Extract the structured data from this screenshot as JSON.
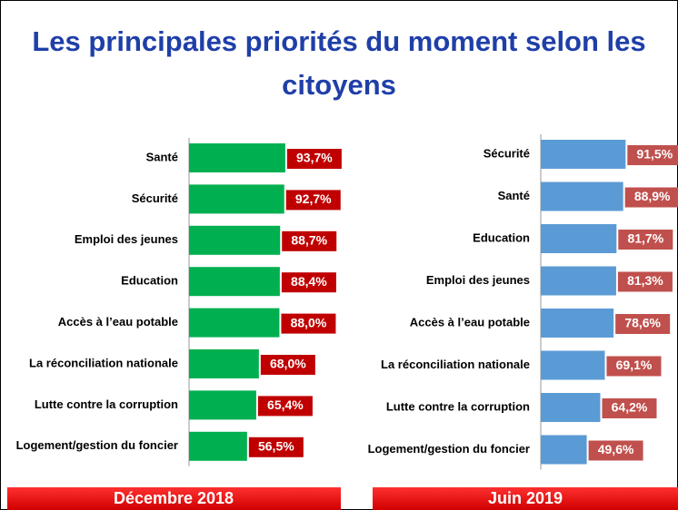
{
  "title": "Les principales priorités du moment selon les citoyens",
  "chart_data": [
    {
      "type": "barh",
      "title": "Décembre 2018",
      "color": "#00b050",
      "label_color": "#c00000",
      "categories": [
        "Santé",
        "Sécurité",
        "Emploi des jeunes",
        "Education",
        "Accès à l’eau potable",
        "La réconciliation nationale",
        "Lutte contre la corruption",
        "Logement/gestion du foncier"
      ],
      "values": [
        93.7,
        92.7,
        88.7,
        88.4,
        88.0,
        68.0,
        65.4,
        56.5
      ],
      "value_labels": [
        "93,7%",
        "92,7%",
        "88,7%",
        "88,4%",
        "88,0%",
        "68,0%",
        "65,4%",
        "56,5%"
      ],
      "xlim": [
        0,
        100
      ]
    },
    {
      "type": "barh",
      "title": "Juin 2019",
      "color": "#5b9bd5",
      "label_color": "#c0504d",
      "categories": [
        "Sécurité",
        "Santé",
        "Education",
        "Emploi des jeunes",
        "Accès à l’eau potable",
        "La réconciliation nationale",
        "Lutte contre la corruption",
        "Logement/gestion du foncier"
      ],
      "values": [
        91.5,
        88.9,
        81.7,
        81.3,
        78.6,
        69.1,
        64.2,
        49.6
      ],
      "value_labels": [
        "91,5%",
        "88,9%",
        "81,7%",
        "81,3%",
        "78,6%",
        "69,1%",
        "64,2%",
        "49,6%"
      ],
      "xlim": [
        0,
        100
      ]
    }
  ]
}
